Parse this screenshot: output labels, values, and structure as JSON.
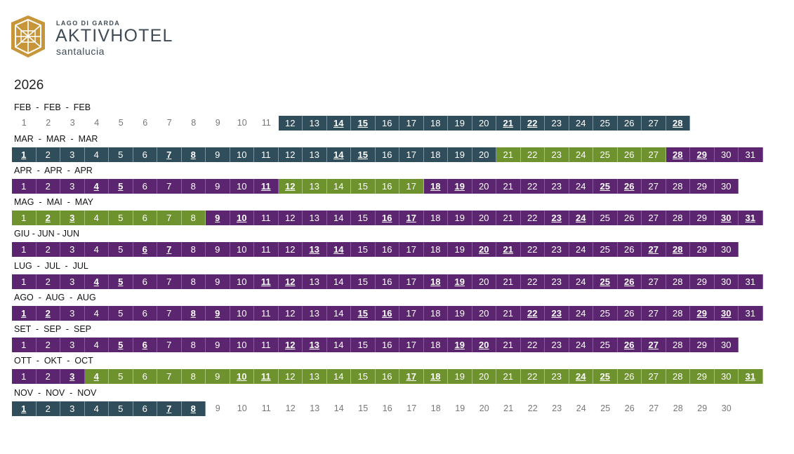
{
  "brand": {
    "tagline": "LAGO DI GARDA",
    "name": "AKTIVHOTEL",
    "subname": "santalucia",
    "colors": {
      "gold": "#c8963a",
      "text": "#3f4b56"
    }
  },
  "year": "2026",
  "legend_colors": {
    "teal": "#2f4d5a",
    "green": "#6e922e",
    "purple": "#5b2570"
  },
  "months": [
    {
      "label": "FEB  -  FEB  -  FEB",
      "segments": [
        {
          "from": 1,
          "to": 11,
          "color": "none"
        },
        {
          "from": 12,
          "to": 28,
          "color": "teal"
        }
      ],
      "bold": [
        14,
        15,
        21,
        22,
        28
      ],
      "days": 28
    },
    {
      "label": "MAR  -  MAR  -  MAR",
      "segments": [
        {
          "from": 1,
          "to": 20,
          "color": "teal"
        },
        {
          "from": 21,
          "to": 27,
          "color": "green"
        },
        {
          "from": 28,
          "to": 31,
          "color": "purple"
        }
      ],
      "bold": [
        1,
        7,
        8,
        14,
        15,
        28,
        29
      ],
      "days": 31
    },
    {
      "label": "APR  -  APR  -  APR",
      "segments": [
        {
          "from": 1,
          "to": 11,
          "color": "purple"
        },
        {
          "from": 12,
          "to": 17,
          "color": "green"
        },
        {
          "from": 18,
          "to": 30,
          "color": "purple"
        }
      ],
      "bold": [
        4,
        5,
        11,
        12,
        18,
        19,
        25,
        26
      ],
      "days": 30
    },
    {
      "label": "MAG  -  MAI  -  MAY",
      "segments": [
        {
          "from": 1,
          "to": 8,
          "color": "green"
        },
        {
          "from": 9,
          "to": 31,
          "color": "purple"
        }
      ],
      "bold": [
        2,
        3,
        9,
        10,
        16,
        17,
        23,
        24,
        30,
        31
      ],
      "days": 31
    },
    {
      "label": "GIU - JUN - JUN",
      "segments": [
        {
          "from": 1,
          "to": 30,
          "color": "purple"
        }
      ],
      "bold": [
        6,
        7,
        13,
        14,
        20,
        21,
        27,
        28
      ],
      "days": 30
    },
    {
      "label": "LUG  -  JUL  -  JUL",
      "segments": [
        {
          "from": 1,
          "to": 31,
          "color": "purple"
        }
      ],
      "bold": [
        4,
        5,
        11,
        12,
        18,
        19,
        25,
        26
      ],
      "days": 31
    },
    {
      "label": "AGO  -  AUG  -  AUG",
      "segments": [
        {
          "from": 1,
          "to": 31,
          "color": "purple"
        }
      ],
      "bold": [
        1,
        2,
        8,
        9,
        15,
        16,
        22,
        23,
        29,
        30
      ],
      "days": 31
    },
    {
      "label": "SET  -  SEP  -  SEP",
      "segments": [
        {
          "from": 1,
          "to": 30,
          "color": "purple"
        }
      ],
      "bold": [
        5,
        6,
        12,
        13,
        19,
        20,
        26,
        27
      ],
      "days": 30
    },
    {
      "label": "OTT  -  OKT  -  OCT",
      "segments": [
        {
          "from": 1,
          "to": 3,
          "color": "purple"
        },
        {
          "from": 4,
          "to": 31,
          "color": "green"
        }
      ],
      "bold": [
        3,
        4,
        10,
        11,
        17,
        18,
        24,
        25,
        31
      ],
      "days": 31
    },
    {
      "label": "NOV  -  NOV  -  NOV",
      "segments": [
        {
          "from": 1,
          "to": 8,
          "color": "teal"
        },
        {
          "from": 9,
          "to": 30,
          "color": "none"
        }
      ],
      "bold": [
        1,
        7,
        8
      ],
      "days": 30
    }
  ]
}
